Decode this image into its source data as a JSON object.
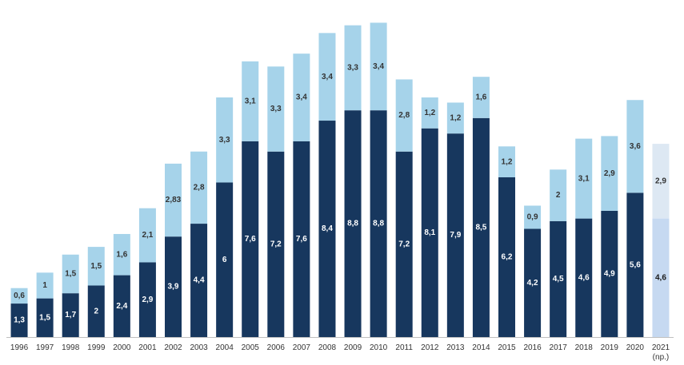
{
  "chart_data": {
    "type": "bar",
    "stacked": true,
    "categories": [
      "1996",
      "1997",
      "1998",
      "1999",
      "2000",
      "2001",
      "2002",
      "2003",
      "2004",
      "2005",
      "2006",
      "2007",
      "2008",
      "2009",
      "2010",
      "2011",
      "2012",
      "2013",
      "2014",
      "2015",
      "2016",
      "2017",
      "2018",
      "2019",
      "2020",
      "2021 (np.)"
    ],
    "category_display": [
      [
        "1996"
      ],
      [
        "1997"
      ],
      [
        "1998"
      ],
      [
        "1999"
      ],
      [
        "2000"
      ],
      [
        "2001"
      ],
      [
        "2002"
      ],
      [
        "2003"
      ],
      [
        "2004"
      ],
      [
        "2005"
      ],
      [
        "2006"
      ],
      [
        "2007"
      ],
      [
        "2008"
      ],
      [
        "2009"
      ],
      [
        "2010"
      ],
      [
        "2011"
      ],
      [
        "2012"
      ],
      [
        "2013"
      ],
      [
        "2014"
      ],
      [
        "2015"
      ],
      [
        "2016"
      ],
      [
        "2017"
      ],
      [
        "2018"
      ],
      [
        "2019"
      ],
      [
        "2020"
      ],
      [
        "2021",
        "(np.)"
      ]
    ],
    "series": [
      {
        "values": [
          1.3,
          1.5,
          1.7,
          2,
          2.4,
          2.9,
          3.9,
          4.4,
          6,
          7.6,
          7.2,
          7.6,
          8.4,
          8.8,
          8.8,
          7.2,
          8.1,
          7.9,
          8.5,
          6.2,
          4.2,
          4.5,
          4.6,
          4.9,
          5.6,
          4.6
        ],
        "labels": [
          "1,3",
          "1,5",
          "1,7",
          "2",
          "2,4",
          "2,9",
          "3,9",
          "4,4",
          "6",
          "7,6",
          "7,2",
          "7,6",
          "8,4",
          "8,8",
          "8,8",
          "7,2",
          "8,1",
          "7,9",
          "8,5",
          "6,2",
          "4,2",
          "4,5",
          "4,6",
          "4,9",
          "5,6",
          "4,6"
        ],
        "color": "#17375e",
        "projected_color": "#c6d9f1",
        "label_color": "#ffffff",
        "projected_label_color": "#1a1a1a"
      },
      {
        "values": [
          0.6,
          1,
          1.5,
          1.5,
          1.6,
          2.1,
          2.83,
          2.8,
          3.3,
          3.1,
          3.3,
          3.4,
          3.4,
          3.3,
          3.4,
          2.8,
          1.2,
          1.2,
          1.6,
          1.2,
          0.9,
          2,
          3.1,
          2.9,
          3.6,
          2.9
        ],
        "labels": [
          "0,6",
          "1",
          "1,5",
          "1,5",
          "1,6",
          "2,1",
          "2,83",
          "2,8",
          "3,3",
          "3,1",
          "3,3",
          "3,4",
          "3,4",
          "3,3",
          "3,4",
          "2,8",
          "1,2",
          "1,2",
          "1,6",
          "1,2",
          "0,9",
          "2",
          "3,1",
          "2,9",
          "3,6",
          "2,9"
        ],
        "color": "#a6d3ea",
        "projected_color": "#dde8f3",
        "label_color": "#333333",
        "projected_label_color": "#333333"
      }
    ],
    "projected_index": 25,
    "ylim": [
      0,
      12.4
    ],
    "title": "",
    "xlabel": "",
    "ylabel": "",
    "grid": false,
    "legend": "none"
  }
}
